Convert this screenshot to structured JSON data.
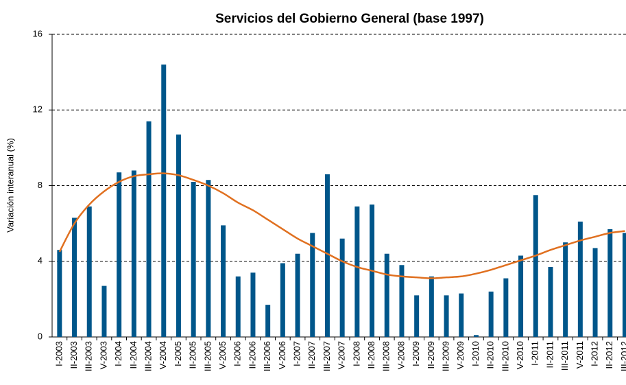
{
  "chart_data": {
    "type": "bar",
    "title": "Servicios del Gobierno General (base 1997)",
    "y_label": "Variación interanual  (%)",
    "categories": [
      "I-2003",
      "II-2003",
      "III-2003",
      "V-2003",
      "I-2004",
      "II-2004",
      "III-2004",
      "V-2004",
      "I-2005",
      "II-2005",
      "III-2005",
      "V-2005",
      "I-2006",
      "II-2006",
      "III-2006",
      "V-2006",
      "I-2007",
      "II-2007",
      "III-2007",
      "V-2007",
      "I-2008",
      "II-2008",
      "III-2008",
      "V-2008",
      "I-2009",
      "II-2009",
      "III-2009",
      "V-2009",
      "I-2010",
      "II-2010",
      "III-2010",
      "V-2010",
      "I-2011",
      "II-2011",
      "III-2011",
      "V-2011",
      "I-2012",
      "II-2012",
      "III-2012"
    ],
    "series": [
      {
        "type": "bar",
        "color": "#00568a",
        "values": [
          4.6,
          6.3,
          6.9,
          2.7,
          8.7,
          8.8,
          11.4,
          14.4,
          10.7,
          8.2,
          8.3,
          5.9,
          3.2,
          3.4,
          1.7,
          3.9,
          4.4,
          5.5,
          8.6,
          5.2,
          6.9,
          7.0,
          4.4,
          3.8,
          2.2,
          3.2,
          2.2,
          2.3,
          0.1,
          2.4,
          3.1,
          4.3,
          7.5,
          3.7,
          5.0,
          6.1,
          4.7,
          5.7,
          5.5
        ]
      },
      {
        "type": "line",
        "color": "#e07020",
        "values": [
          4.5,
          6.0,
          7.0,
          7.7,
          8.2,
          8.5,
          8.6,
          8.65,
          8.55,
          8.3,
          8.0,
          7.6,
          7.1,
          6.7,
          6.2,
          5.7,
          5.2,
          4.8,
          4.4,
          4.0,
          3.7,
          3.5,
          3.3,
          3.2,
          3.15,
          3.1,
          3.15,
          3.2,
          3.35,
          3.55,
          3.8,
          4.05,
          4.3,
          4.6,
          4.85,
          5.1,
          5.3,
          5.5,
          5.6
        ]
      }
    ],
    "ylim": [
      0,
      16
    ],
    "yticks": [
      0,
      4,
      8,
      12,
      16
    ],
    "grid": true
  }
}
